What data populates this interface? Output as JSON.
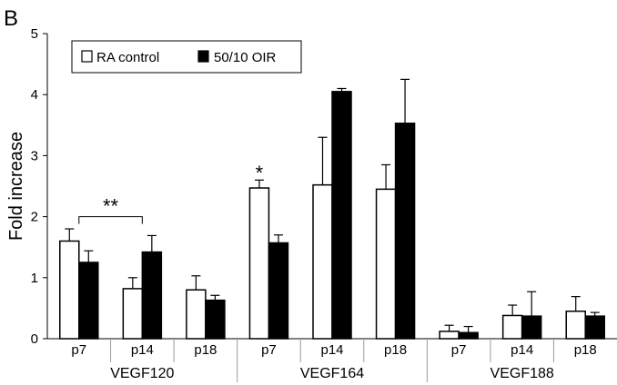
{
  "panel_label": "B",
  "chart_data": {
    "type": "bar",
    "title": "",
    "xlabel": "",
    "ylabel": "Fold increase",
    "ylim": [
      0,
      5
    ],
    "yticks": [
      "0",
      "1",
      "2",
      "3",
      "4",
      "5"
    ],
    "categories": [
      "p7",
      "p14",
      "p18",
      "p7",
      "p14",
      "p18",
      "p7",
      "p14",
      "p18"
    ],
    "groups": [
      {
        "name": "VEGF120",
        "categories": [
          "p7",
          "p14",
          "p18"
        ]
      },
      {
        "name": "VEGF164",
        "categories": [
          "p7",
          "p14",
          "p18"
        ]
      },
      {
        "name": "VEGF188",
        "categories": [
          "p7",
          "p14",
          "p18"
        ]
      }
    ],
    "series": [
      {
        "name": "RA control",
        "color": "#ffffff",
        "values": [
          1.6,
          0.82,
          0.8,
          2.47,
          2.52,
          2.45,
          0.12,
          0.38,
          0.45
        ],
        "errors": [
          0.2,
          0.18,
          0.23,
          0.13,
          0.78,
          0.4,
          0.1,
          0.17,
          0.24
        ]
      },
      {
        "name": "50/10 OIR",
        "color": "#000000",
        "values": [
          1.25,
          1.42,
          0.63,
          1.57,
          4.05,
          3.53,
          0.1,
          0.37,
          0.37
        ],
        "errors": [
          0.19,
          0.27,
          0.08,
          0.13,
          0.05,
          0.72,
          0.1,
          0.4,
          0.06
        ]
      }
    ],
    "legend": {
      "position": "top-left",
      "entries": [
        "RA control",
        "50/10 OIR"
      ]
    },
    "annotations": [
      {
        "text": "**",
        "type": "bracket",
        "from_category": 0,
        "to_category": 1,
        "y": 2.0
      },
      {
        "text": "*",
        "type": "label",
        "category": 3,
        "y": 2.72
      }
    ]
  }
}
